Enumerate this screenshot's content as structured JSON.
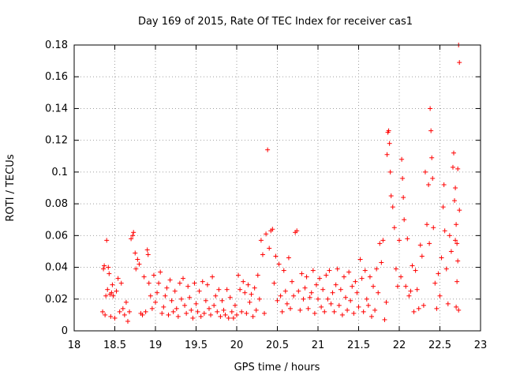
{
  "chart_data": {
    "type": "scatter",
    "title": "Day 169 of 2015, Rate Of TEC Index for receiver cas1",
    "xlabel": "GPS time / hours",
    "ylabel": "ROTI / TECUs",
    "xlim": [
      18,
      23
    ],
    "ylim": [
      0,
      0.18
    ],
    "xticks": [
      "18",
      "18.5",
      "19",
      "19.5",
      "20",
      "20.5",
      "21",
      "21.5",
      "22",
      "22.5",
      "23"
    ],
    "yticks": [
      "0",
      "0.02",
      "0.04",
      "0.06",
      "0.08",
      "0.1",
      "0.12",
      "0.14",
      "0.16",
      "0.18"
    ],
    "grid": true,
    "marker": "+",
    "color": "#ff0000",
    "series": [
      {
        "name": "cas1",
        "points": [
          [
            18.35,
            0.012
          ],
          [
            18.36,
            0.039
          ],
          [
            18.37,
            0.041
          ],
          [
            18.38,
            0.01
          ],
          [
            18.39,
            0.022
          ],
          [
            18.4,
            0.057
          ],
          [
            18.41,
            0.026
          ],
          [
            18.42,
            0.04
          ],
          [
            18.43,
            0.036
          ],
          [
            18.44,
            0.023
          ],
          [
            18.45,
            0.009
          ],
          [
            18.46,
            0.024
          ],
          [
            18.47,
            0.029
          ],
          [
            18.48,
            0.022
          ],
          [
            18.5,
            0.008
          ],
          [
            18.52,
            0.025
          ],
          [
            18.54,
            0.033
          ],
          [
            18.56,
            0.012
          ],
          [
            18.58,
            0.03
          ],
          [
            18.6,
            0.014
          ],
          [
            18.62,
            0.01
          ],
          [
            18.64,
            0.018
          ],
          [
            18.66,
            0.006
          ],
          [
            18.68,
            0.012
          ],
          [
            18.7,
            0.058
          ],
          [
            18.72,
            0.06
          ],
          [
            18.73,
            0.062
          ],
          [
            18.75,
            0.049
          ],
          [
            18.76,
            0.039
          ],
          [
            18.78,
            0.045
          ],
          [
            18.8,
            0.042
          ],
          [
            18.82,
            0.011
          ],
          [
            18.84,
            0.01
          ],
          [
            18.86,
            0.034
          ],
          [
            18.88,
            0.012
          ],
          [
            18.9,
            0.051
          ],
          [
            18.91,
            0.048
          ],
          [
            18.92,
            0.03
          ],
          [
            18.94,
            0.022
          ],
          [
            18.96,
            0.014
          ],
          [
            18.98,
            0.035
          ],
          [
            19.0,
            0.018
          ],
          [
            19.02,
            0.024
          ],
          [
            19.04,
            0.03
          ],
          [
            19.06,
            0.037
          ],
          [
            19.08,
            0.011
          ],
          [
            19.1,
            0.015
          ],
          [
            19.12,
            0.022
          ],
          [
            19.14,
            0.027
          ],
          [
            19.16,
            0.01
          ],
          [
            19.18,
            0.032
          ],
          [
            19.2,
            0.019
          ],
          [
            19.22,
            0.012
          ],
          [
            19.24,
            0.025
          ],
          [
            19.26,
            0.014
          ],
          [
            19.28,
            0.009
          ],
          [
            19.3,
            0.03
          ],
          [
            19.32,
            0.02
          ],
          [
            19.34,
            0.033
          ],
          [
            19.36,
            0.016
          ],
          [
            19.38,
            0.011
          ],
          [
            19.4,
            0.028
          ],
          [
            19.42,
            0.021
          ],
          [
            19.44,
            0.013
          ],
          [
            19.46,
            0.008
          ],
          [
            19.48,
            0.03
          ],
          [
            19.5,
            0.017
          ],
          [
            19.52,
            0.012
          ],
          [
            19.54,
            0.025
          ],
          [
            19.56,
            0.009
          ],
          [
            19.58,
            0.031
          ],
          [
            19.6,
            0.011
          ],
          [
            19.62,
            0.019
          ],
          [
            19.64,
            0.029
          ],
          [
            19.66,
            0.014
          ],
          [
            19.68,
            0.01
          ],
          [
            19.7,
            0.034
          ],
          [
            19.72,
            0.016
          ],
          [
            19.74,
            0.022
          ],
          [
            19.76,
            0.012
          ],
          [
            19.78,
            0.026
          ],
          [
            19.8,
            0.009
          ],
          [
            19.82,
            0.019
          ],
          [
            19.84,
            0.013
          ],
          [
            19.86,
            0.01
          ],
          [
            19.88,
            0.026
          ],
          [
            19.9,
            0.008
          ],
          [
            19.92,
            0.021
          ],
          [
            19.94,
            0.012
          ],
          [
            19.96,
            0.008
          ],
          [
            19.98,
            0.016
          ],
          [
            20.0,
            0.01
          ],
          [
            20.02,
            0.035
          ],
          [
            20.04,
            0.026
          ],
          [
            20.06,
            0.012
          ],
          [
            20.08,
            0.031
          ],
          [
            20.1,
            0.024
          ],
          [
            20.12,
            0.011
          ],
          [
            20.14,
            0.029
          ],
          [
            20.16,
            0.018
          ],
          [
            20.18,
            0.023
          ],
          [
            20.2,
            0.009
          ],
          [
            20.22,
            0.027
          ],
          [
            20.24,
            0.013
          ],
          [
            20.26,
            0.035
          ],
          [
            20.28,
            0.02
          ],
          [
            20.3,
            0.057
          ],
          [
            20.32,
            0.048
          ],
          [
            20.34,
            0.011
          ],
          [
            20.36,
            0.061
          ],
          [
            20.38,
            0.114
          ],
          [
            20.4,
            0.052
          ],
          [
            20.42,
            0.063
          ],
          [
            20.44,
            0.064
          ],
          [
            20.46,
            0.03
          ],
          [
            20.48,
            0.047
          ],
          [
            20.5,
            0.019
          ],
          [
            20.52,
            0.042
          ],
          [
            20.54,
            0.022
          ],
          [
            20.56,
            0.012
          ],
          [
            20.58,
            0.038
          ],
          [
            20.6,
            0.025
          ],
          [
            20.62,
            0.017
          ],
          [
            20.64,
            0.046
          ],
          [
            20.66,
            0.014
          ],
          [
            20.68,
            0.031
          ],
          [
            20.7,
            0.022
          ],
          [
            20.72,
            0.062
          ],
          [
            20.74,
            0.063
          ],
          [
            20.76,
            0.025
          ],
          [
            20.78,
            0.013
          ],
          [
            20.8,
            0.036
          ],
          [
            20.82,
            0.02
          ],
          [
            20.84,
            0.027
          ],
          [
            20.86,
            0.034
          ],
          [
            20.88,
            0.014
          ],
          [
            20.9,
            0.021
          ],
          [
            20.92,
            0.024
          ],
          [
            20.94,
            0.038
          ],
          [
            20.96,
            0.011
          ],
          [
            20.98,
            0.029
          ],
          [
            21.0,
            0.02
          ],
          [
            21.02,
            0.033
          ],
          [
            21.04,
            0.015
          ],
          [
            21.06,
            0.026
          ],
          [
            21.08,
            0.012
          ],
          [
            21.1,
            0.035
          ],
          [
            21.12,
            0.02
          ],
          [
            21.14,
            0.038
          ],
          [
            21.16,
            0.017
          ],
          [
            21.18,
            0.024
          ],
          [
            21.2,
            0.012
          ],
          [
            21.22,
            0.029
          ],
          [
            21.24,
            0.039
          ],
          [
            21.26,
            0.016
          ],
          [
            21.28,
            0.026
          ],
          [
            21.3,
            0.01
          ],
          [
            21.32,
            0.034
          ],
          [
            21.34,
            0.021
          ],
          [
            21.36,
            0.013
          ],
          [
            21.38,
            0.037
          ],
          [
            21.4,
            0.019
          ],
          [
            21.42,
            0.028
          ],
          [
            21.44,
            0.011
          ],
          [
            21.46,
            0.031
          ],
          [
            21.48,
            0.024
          ],
          [
            21.5,
            0.015
          ],
          [
            21.52,
            0.045
          ],
          [
            21.54,
            0.033
          ],
          [
            21.56,
            0.012
          ],
          [
            21.58,
            0.038
          ],
          [
            21.6,
            0.02
          ],
          [
            21.62,
            0.016
          ],
          [
            21.64,
            0.034
          ],
          [
            21.66,
            0.009
          ],
          [
            21.68,
            0.028
          ],
          [
            21.7,
            0.013
          ],
          [
            21.72,
            0.039
          ],
          [
            21.74,
            0.024
          ],
          [
            21.76,
            0.055
          ],
          [
            21.78,
            0.043
          ],
          [
            21.8,
            0.057
          ],
          [
            21.82,
            0.007
          ],
          [
            21.84,
            0.018
          ],
          [
            21.85,
            0.111
          ],
          [
            21.86,
            0.125
          ],
          [
            21.87,
            0.126
          ],
          [
            21.88,
            0.118
          ],
          [
            21.89,
            0.1
          ],
          [
            21.9,
            0.085
          ],
          [
            21.92,
            0.078
          ],
          [
            21.94,
            0.065
          ],
          [
            21.96,
            0.039
          ],
          [
            21.98,
            0.028
          ],
          [
            22.0,
            0.057
          ],
          [
            22.02,
            0.034
          ],
          [
            22.03,
            0.108
          ],
          [
            22.04,
            0.096
          ],
          [
            22.05,
            0.084
          ],
          [
            22.06,
            0.07
          ],
          [
            22.08,
            0.028
          ],
          [
            22.1,
            0.058
          ],
          [
            22.12,
            0.022
          ],
          [
            22.14,
            0.025
          ],
          [
            22.16,
            0.041
          ],
          [
            22.18,
            0.012
          ],
          [
            22.2,
            0.038
          ],
          [
            22.22,
            0.026
          ],
          [
            22.24,
            0.014
          ],
          [
            22.26,
            0.054
          ],
          [
            22.28,
            0.047
          ],
          [
            22.3,
            0.016
          ],
          [
            22.32,
            0.1
          ],
          [
            22.34,
            0.067
          ],
          [
            22.36,
            0.092
          ],
          [
            22.37,
            0.055
          ],
          [
            22.38,
            0.14
          ],
          [
            22.39,
            0.126
          ],
          [
            22.4,
            0.109
          ],
          [
            22.41,
            0.096
          ],
          [
            22.42,
            0.065
          ],
          [
            22.44,
            0.03
          ],
          [
            22.46,
            0.014
          ],
          [
            22.48,
            0.036
          ],
          [
            22.5,
            0.022
          ],
          [
            22.52,
            0.046
          ],
          [
            22.54,
            0.078
          ],
          [
            22.55,
            0.092
          ],
          [
            22.56,
            0.063
          ],
          [
            22.58,
            0.039
          ],
          [
            22.6,
            0.017
          ],
          [
            22.62,
            0.06
          ],
          [
            22.64,
            0.05
          ],
          [
            22.66,
            0.103
          ],
          [
            22.67,
            0.112
          ],
          [
            22.68,
            0.082
          ],
          [
            22.69,
            0.09
          ],
          [
            22.7,
            0.067
          ],
          [
            22.71,
            0.055
          ],
          [
            22.72,
            0.102
          ],
          [
            22.73,
            0.18
          ],
          [
            22.74,
            0.169
          ],
          [
            22.74,
            0.076
          ],
          [
            22.73,
            0.013
          ],
          [
            22.72,
            0.044
          ],
          [
            22.71,
            0.031
          ],
          [
            22.7,
            0.015
          ],
          [
            22.69,
            0.057
          ]
        ]
      }
    ]
  }
}
